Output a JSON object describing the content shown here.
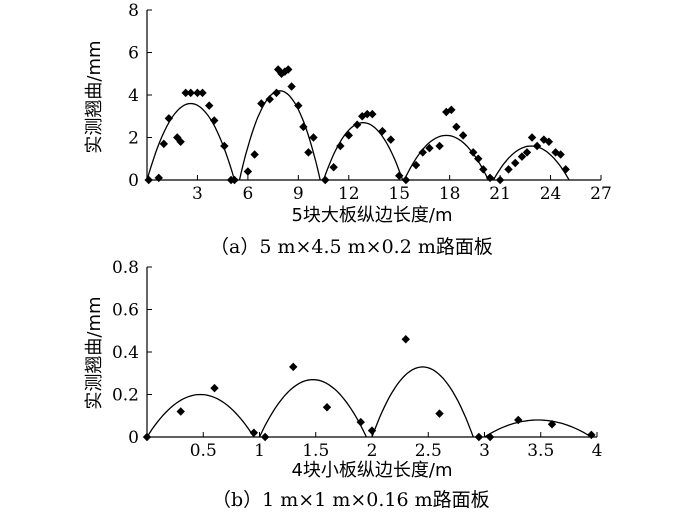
{
  "chart_data": [
    {
      "type": "scatter",
      "title": "",
      "caption": "（a）5 m×4.5 m×0.2 m路面板",
      "xlabel": "5块大板纵边长度/m",
      "ylabel": "实测翘曲/mm",
      "xlim": [
        0,
        27
      ],
      "ylim": [
        0,
        8
      ],
      "xticks": [
        3,
        6,
        9,
        12,
        15,
        18,
        21,
        24,
        27
      ],
      "yticks": [
        0,
        2,
        4,
        6,
        8
      ],
      "grid": false,
      "series": [
        {
          "kind": "points",
          "marker": "diamond",
          "x": [
            0.1,
            0.7,
            1.0,
            1.3,
            1.8,
            2.0,
            2.3,
            2.6,
            3.0,
            3.3,
            3.7,
            4.0,
            4.6,
            5.0,
            5.2,
            6.0,
            6.4,
            6.8,
            7.3,
            7.7,
            7.8,
            8.0,
            8.2,
            8.4,
            8.6,
            9.0,
            9.3,
            9.6,
            9.9,
            10.6,
            11.1,
            11.5,
            12.0,
            12.5,
            12.8,
            13.1,
            13.4,
            14.0,
            14.5,
            15.0,
            15.4,
            16.0,
            16.4,
            16.8,
            17.4,
            17.8,
            18.1,
            18.4,
            18.8,
            19.4,
            19.7,
            20.0,
            20.4,
            21.0,
            21.5,
            21.9,
            22.3,
            22.6,
            22.9,
            23.2,
            23.6,
            23.9,
            24.3,
            24.6,
            24.9
          ],
          "y": [
            0.0,
            0.1,
            1.7,
            2.9,
            2.0,
            1.8,
            4.1,
            4.1,
            4.1,
            4.1,
            3.5,
            2.8,
            1.6,
            0.0,
            0.0,
            0.4,
            1.2,
            3.6,
            3.8,
            4.1,
            5.2,
            5.0,
            5.1,
            5.2,
            4.4,
            3.5,
            2.5,
            1.3,
            2.0,
            0.0,
            0.6,
            1.6,
            2.1,
            2.6,
            3.0,
            3.1,
            3.1,
            2.3,
            1.9,
            0.2,
            0.0,
            0.7,
            1.3,
            1.5,
            1.6,
            3.2,
            3.3,
            2.5,
            2.1,
            1.3,
            1.0,
            0.5,
            0.1,
            0.0,
            0.5,
            0.8,
            1.1,
            1.3,
            2.0,
            1.6,
            1.9,
            1.8,
            1.3,
            1.2,
            0.5
          ]
        },
        {
          "kind": "fit-curves",
          "segments": [
            {
              "x0": 0.0,
              "x1": 5.2,
              "peak": 3.6
            },
            {
              "x0": 5.5,
              "x1": 10.3,
              "peak": 4.2
            },
            {
              "x0": 10.5,
              "x1": 15.2,
              "peak": 2.7
            },
            {
              "x0": 15.3,
              "x1": 20.3,
              "peak": 2.1
            },
            {
              "x0": 20.6,
              "x1": 25.1,
              "peak": 1.6
            }
          ]
        }
      ]
    },
    {
      "type": "scatter",
      "title": "",
      "caption": "（b）1 m×1 m×0.16 m路面板",
      "xlabel": "4块小板纵边长度/m",
      "ylabel": "实测翘曲/mm",
      "xlim": [
        0,
        4
      ],
      "ylim": [
        0,
        0.8
      ],
      "xticks": [
        0.5,
        1,
        1.5,
        2,
        2.5,
        3,
        3.5,
        4
      ],
      "yticks": [
        0,
        0.2,
        0.4,
        0.6,
        0.8
      ],
      "grid": false,
      "series": [
        {
          "kind": "points",
          "marker": "diamond",
          "x": [
            0.0,
            0.3,
            0.6,
            0.95,
            1.05,
            1.3,
            1.6,
            1.9,
            2.0,
            2.3,
            2.6,
            2.95,
            3.05,
            3.3,
            3.6,
            3.95
          ],
          "y": [
            0.0,
            0.12,
            0.23,
            0.02,
            0.0,
            0.33,
            0.14,
            0.07,
            0.03,
            0.46,
            0.11,
            0.0,
            0.0,
            0.08,
            0.06,
            0.01
          ]
        },
        {
          "kind": "fit-curves",
          "segments": [
            {
              "x0": 0.0,
              "x1": 0.95,
              "peak": 0.2
            },
            {
              "x0": 1.0,
              "x1": 1.95,
              "peak": 0.27
            },
            {
              "x0": 2.0,
              "x1": 2.9,
              "peak": 0.33
            },
            {
              "x0": 3.0,
              "x1": 3.95,
              "peak": 0.08
            }
          ]
        }
      ]
    }
  ]
}
